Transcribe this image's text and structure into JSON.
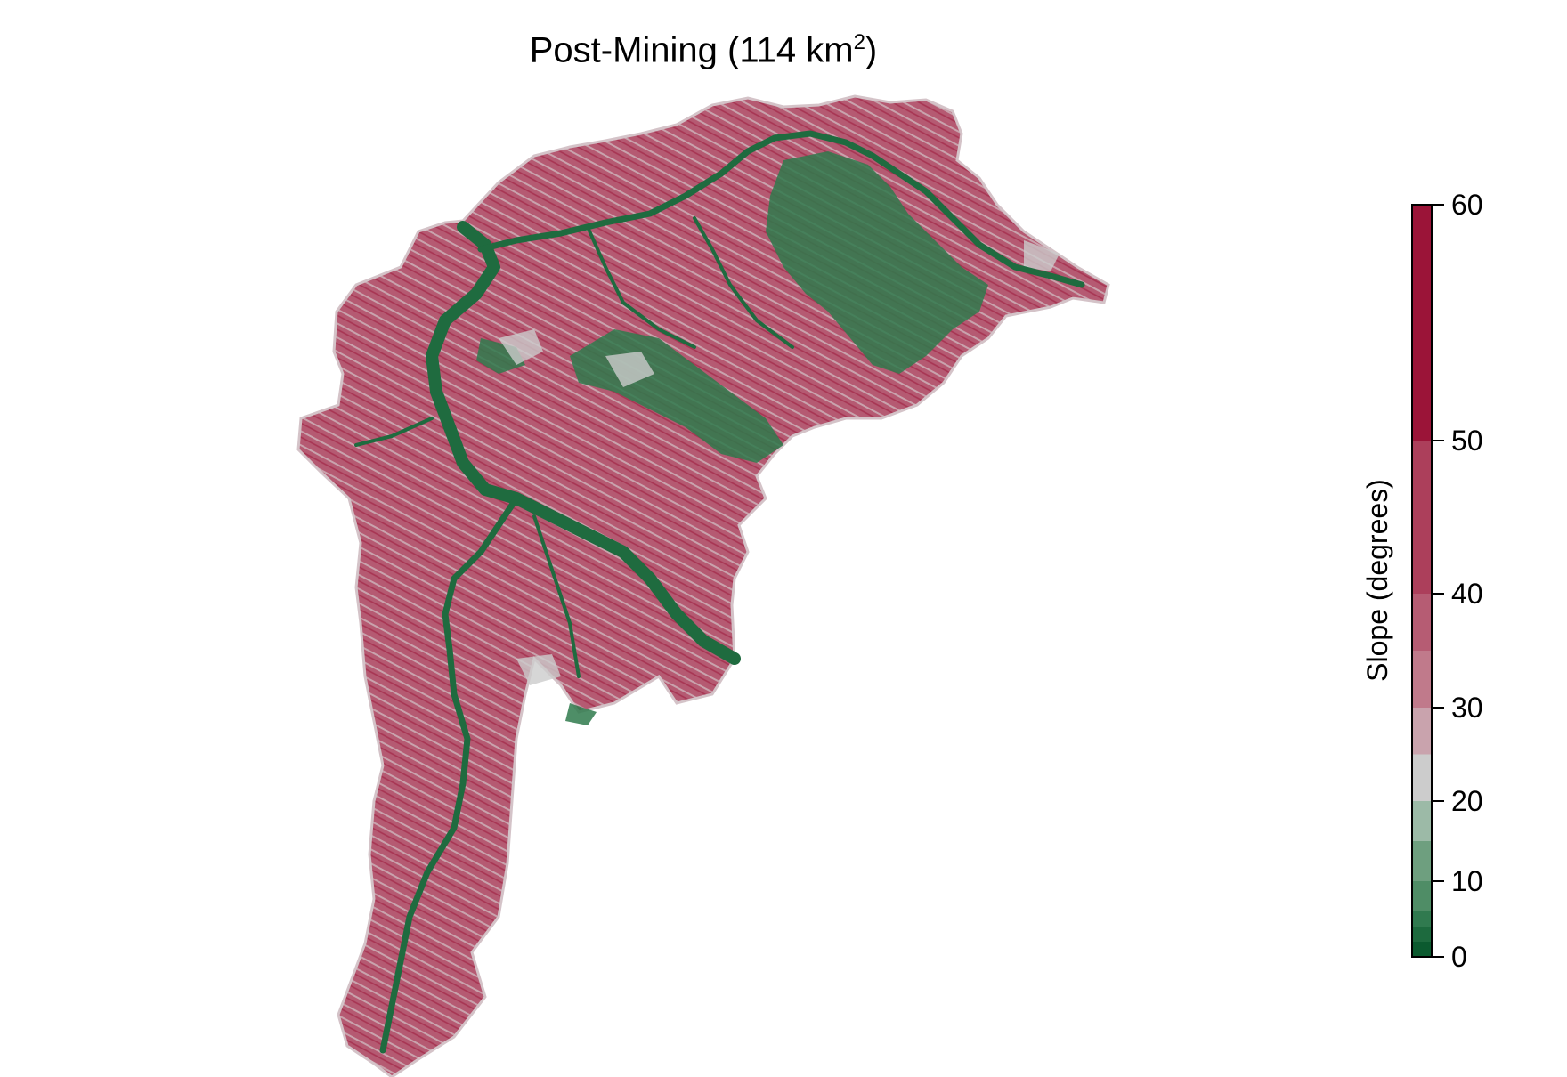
{
  "title": {
    "text": "Post-Mining (114 km",
    "superscript": "2",
    "closing": ")"
  },
  "legend": {
    "label": "Slope (degrees)",
    "ticks": [
      "0",
      "10",
      "20",
      "30",
      "40",
      "50",
      "60"
    ],
    "tick_values": [
      0,
      10,
      20,
      30,
      40,
      50,
      60
    ],
    "bins": [
      {
        "from": 0,
        "to": 2,
        "color": "#0b5a2f"
      },
      {
        "from": 2,
        "to": 4,
        "color": "#1d6a3e"
      },
      {
        "from": 4,
        "to": 6,
        "color": "#307a4f"
      },
      {
        "from": 6,
        "to": 10,
        "color": "#4f8d66"
      },
      {
        "from": 10,
        "to": 15,
        "color": "#6e9f7f"
      },
      {
        "from": 15,
        "to": 20,
        "color": "#9cbaa7"
      },
      {
        "from": 20,
        "to": 25,
        "color": "#cccccc"
      },
      {
        "from": 25,
        "to": 30,
        "color": "#c9a3ad"
      },
      {
        "from": 30,
        "to": 35,
        "color": "#c07a8b"
      },
      {
        "from": 35,
        "to": 40,
        "color": "#b65c73"
      },
      {
        "from": 40,
        "to": 50,
        "color": "#ac3f5b"
      },
      {
        "from": 50,
        "to": 60,
        "color": "#9b1438"
      }
    ]
  },
  "map": {
    "dominant_color": "#b55a72",
    "valley_color": "#2f7a4c",
    "highlight_color": "#d9d9d9"
  }
}
